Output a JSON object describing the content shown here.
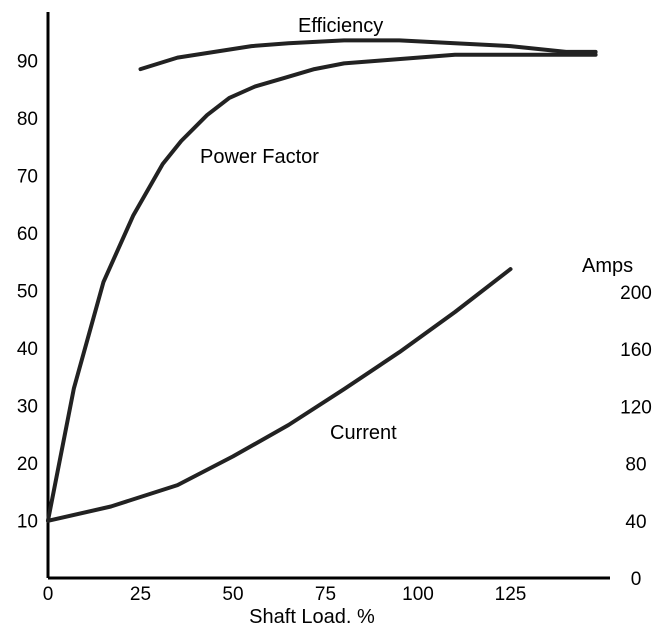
{
  "chart_data": {
    "type": "line",
    "title": "",
    "xlabel": "Shaft Load. %",
    "ylabel": "",
    "y2label": "Amps",
    "xlim": [
      0,
      150
    ],
    "ylim": [
      0,
      100
    ],
    "y2lim": [
      0,
      240
    ],
    "grid": false,
    "x_ticks": [
      "0",
      "25",
      "50",
      "75",
      "100",
      "125"
    ],
    "y_ticks": [
      "10",
      "20",
      "30",
      "40",
      "50",
      "60",
      "70",
      "80",
      "90"
    ],
    "y2_ticks": [
      "0",
      "40",
      "80",
      "120",
      "160",
      "200"
    ],
    "series": [
      {
        "name": "Efficiency",
        "axis": "left",
        "x": [
          25,
          35,
          45,
          55,
          65,
          80,
          95,
          110,
          125,
          140,
          148
        ],
        "y": [
          88.5,
          90.5,
          91.5,
          92.5,
          93,
          93.5,
          93.5,
          93,
          92.5,
          91.5,
          91.5
        ]
      },
      {
        "name": "Power Factor",
        "axis": "left",
        "x": [
          0,
          7,
          15,
          23,
          31,
          36,
          43,
          49,
          56,
          64,
          72,
          80,
          90,
          100,
          110,
          120,
          130,
          140,
          148
        ],
        "y": [
          10,
          33,
          51.5,
          63,
          72,
          76,
          80.5,
          83.5,
          85.5,
          87,
          88.5,
          89.5,
          90,
          90.5,
          91,
          91,
          91,
          91,
          91
        ]
      },
      {
        "name": "Current",
        "axis": "right",
        "x": [
          0,
          17,
          35,
          50,
          65,
          80,
          95,
          110,
          125
        ],
        "y": [
          40,
          50,
          65,
          85,
          107,
          132,
          158,
          186,
          216
        ]
      }
    ]
  }
}
